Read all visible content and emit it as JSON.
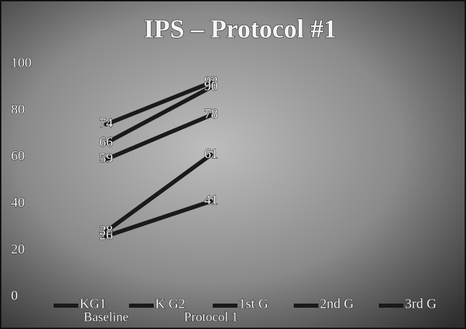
{
  "chart_data": {
    "type": "line",
    "title": "IPS – Protocol #1",
    "categories": [
      "Baseline",
      "Protocol 1"
    ],
    "series": [
      {
        "name": "KG1",
        "color": "#1a1a1a",
        "values": [
          74,
          92
        ]
      },
      {
        "name": "K G2",
        "color": "#1a1a1a",
        "values": [
          66,
          90
        ]
      },
      {
        "name": "1st G",
        "color": "#1a1a1a",
        "values": [
          59,
          78
        ]
      },
      {
        "name": "2nd G",
        "color": "#1a1a1a",
        "values": [
          28,
          61
        ]
      },
      {
        "name": "3rd G",
        "color": "#1a1a1a",
        "values": [
          26,
          41
        ]
      }
    ],
    "ylim": [
      0,
      100
    ],
    "yticks": [
      0,
      20,
      40,
      60,
      80,
      100
    ],
    "grid": false,
    "legend": "bottom"
  }
}
